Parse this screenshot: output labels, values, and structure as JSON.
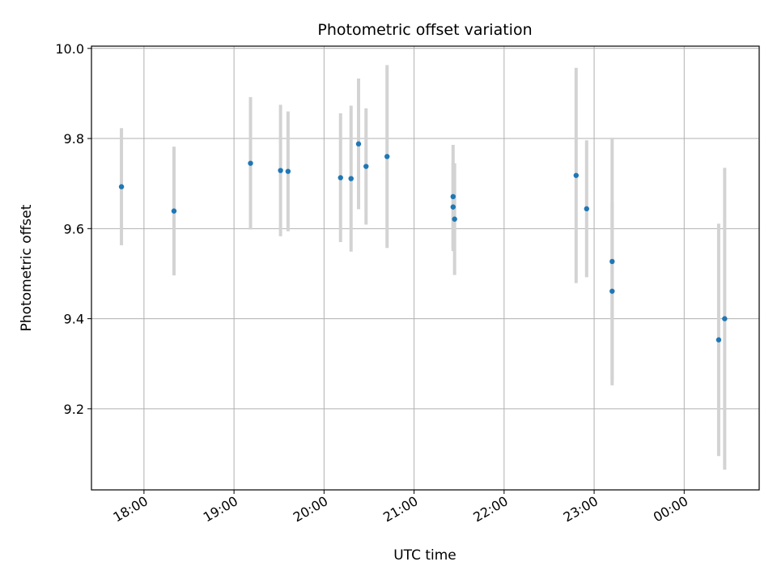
{
  "chart_data": {
    "type": "scatter",
    "title": "Photometric offset variation",
    "xlabel": "UTC time",
    "ylabel": "Photometric offset",
    "xlim": [
      "17:25",
      "00:50"
    ],
    "ylim": [
      9.02,
      10.005
    ],
    "x_ticks": [
      "18:00",
      "19:00",
      "20:00",
      "21:00",
      "22:00",
      "23:00",
      "00:00"
    ],
    "y_ticks": [
      9.2,
      9.4,
      9.6,
      9.8,
      10.0
    ],
    "y_tick_labels": [
      "9.2",
      "9.4",
      "9.6",
      "9.8",
      "10.0"
    ],
    "grid": true,
    "series": [
      {
        "marker_color": "#1f77b4",
        "errorbar_color": "#d3d3d3",
        "points": [
          {
            "x": "17:45",
            "y": 9.693,
            "err": 0.13
          },
          {
            "x": "18:20",
            "y": 9.639,
            "err": 0.143
          },
          {
            "x": "19:11",
            "y": 9.745,
            "err": 0.147
          },
          {
            "x": "19:31",
            "y": 9.729,
            "err": 0.146
          },
          {
            "x": "19:36",
            "y": 9.727,
            "err": 0.133
          },
          {
            "x": "20:11",
            "y": 9.713,
            "err": 0.143
          },
          {
            "x": "20:18",
            "y": 9.711,
            "err": 0.162
          },
          {
            "x": "20:23",
            "y": 9.788,
            "err": 0.145
          },
          {
            "x": "20:28",
            "y": 9.738,
            "err": 0.129
          },
          {
            "x": "20:42",
            "y": 9.76,
            "err": 0.203
          },
          {
            "x": "21:26",
            "y": 9.671,
            "err": 0.115
          },
          {
            "x": "21:26",
            "y": 9.648,
            "err": 0.098
          },
          {
            "x": "21:27",
            "y": 9.621,
            "err": 0.124
          },
          {
            "x": "22:48",
            "y": 9.718,
            "err": 0.239
          },
          {
            "x": "22:55",
            "y": 9.644,
            "err": 0.152
          },
          {
            "x": "23:12",
            "y": 9.527,
            "err": 0.275
          },
          {
            "x": "23:12",
            "y": 9.461,
            "err": 0.197
          },
          {
            "x": "00:23",
            "y": 9.353,
            "err": 0.258
          },
          {
            "x": "00:27",
            "y": 9.4,
            "err": 0.335
          }
        ]
      }
    ]
  }
}
